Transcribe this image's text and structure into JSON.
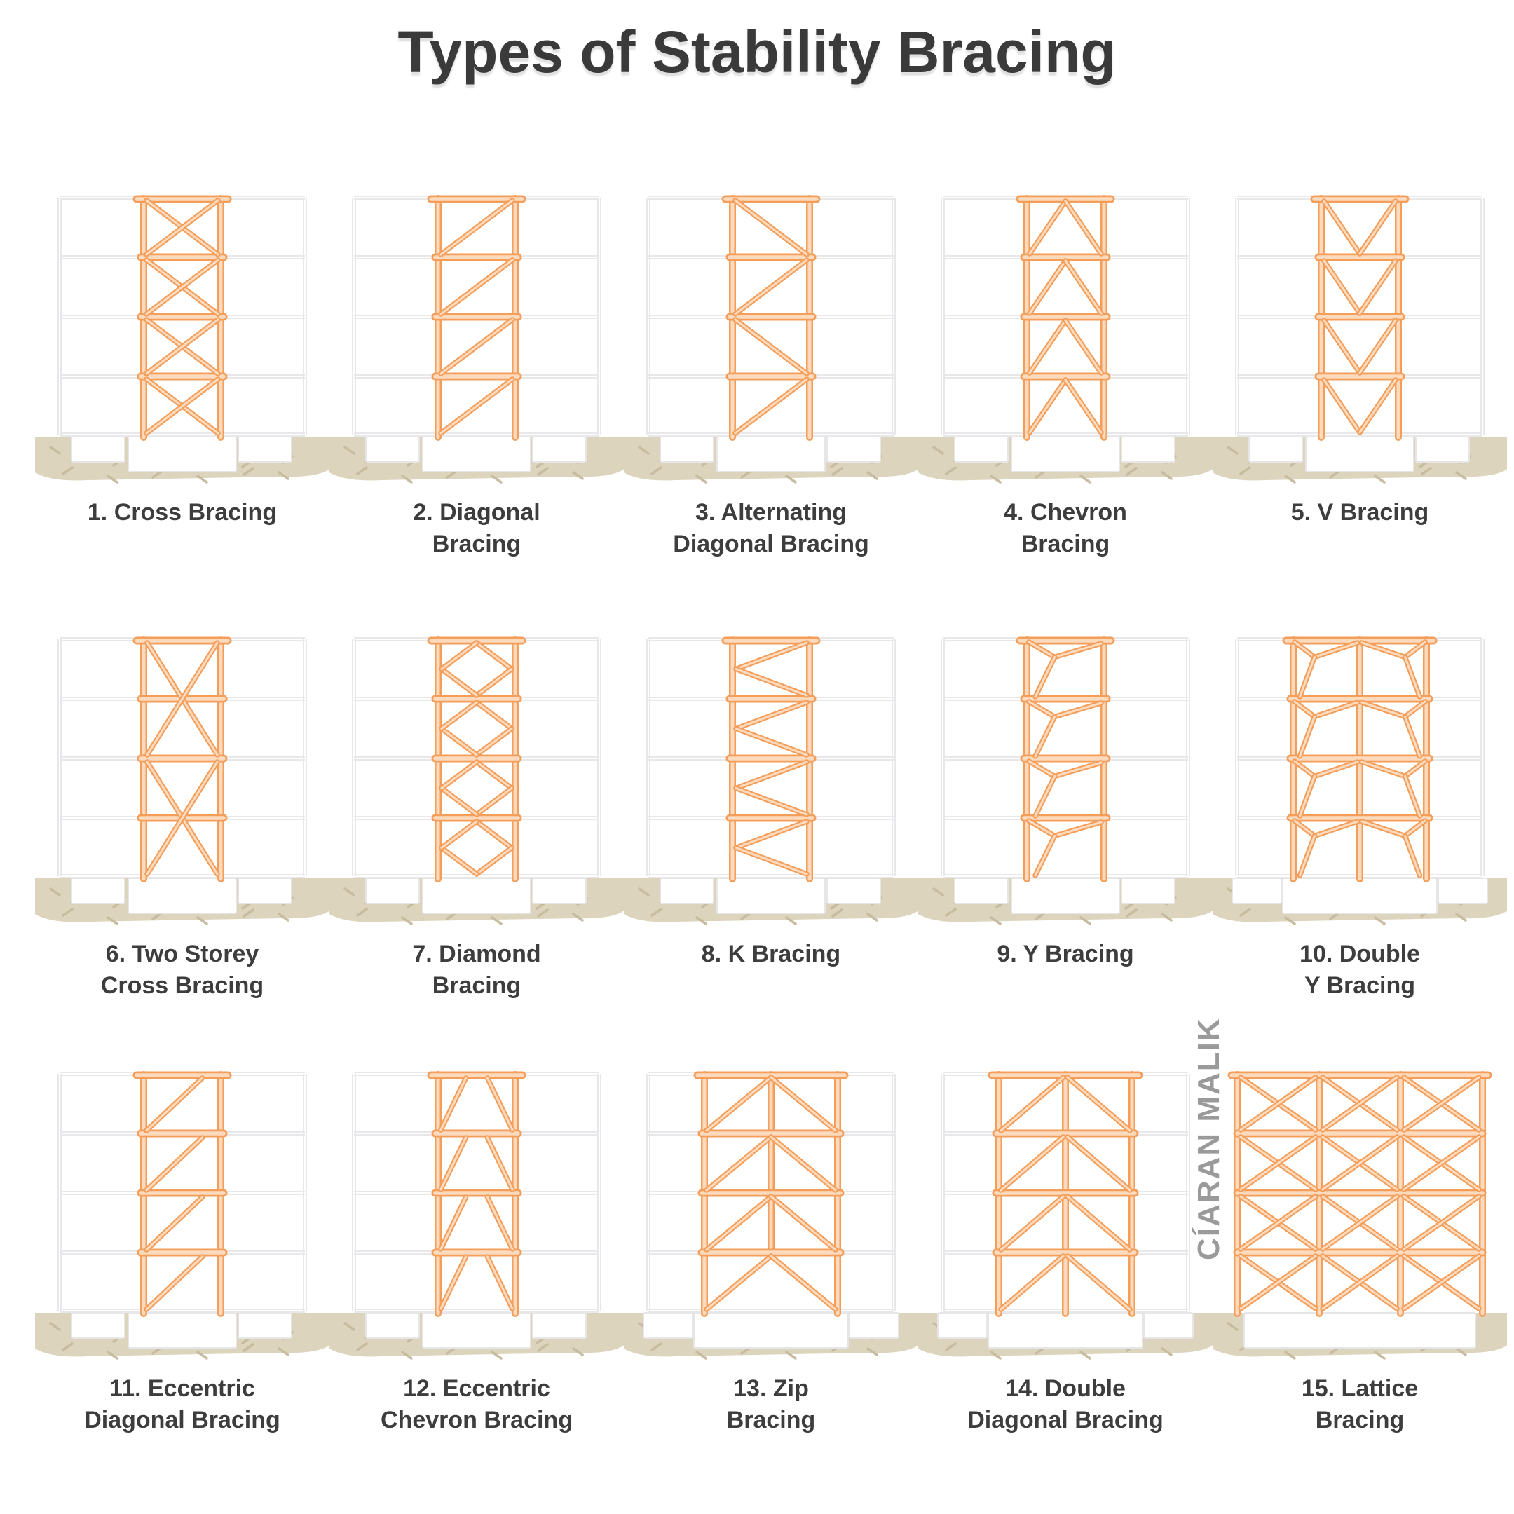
{
  "title": "Types of Stability Bracing",
  "watermark": "CÍARAN MALIK",
  "colors": {
    "accent_stroke": "#F49E5A",
    "accent_fill": "#FBDABE",
    "frame_gray": "#E8E8EB",
    "ground": "#DDD4BD",
    "ground_hatch": "#C8BCA0",
    "footing_fill": "#FFFFFF",
    "footing_stroke": "#E6E6E8",
    "label_text": "#3D3D3D",
    "title_text": "#3A3A3A",
    "watermark_text": "#9A9A9A"
  },
  "items": [
    {
      "id": 1,
      "label": "1. Cross Bracing",
      "pattern": "cross",
      "span": "single"
    },
    {
      "id": 2,
      "label": "2. Diagonal\nBracing",
      "pattern": "diagonal",
      "span": "single"
    },
    {
      "id": 3,
      "label": "3. Alternating\nDiagonal Bracing",
      "pattern": "alt_diagonal",
      "span": "single"
    },
    {
      "id": 4,
      "label": "4. Chevron\nBracing",
      "pattern": "chevron",
      "span": "single"
    },
    {
      "id": 5,
      "label": "5. V Bracing",
      "pattern": "v",
      "span": "single"
    },
    {
      "id": 6,
      "label": "6. Two Storey\nCross Bracing",
      "pattern": "two_storey_cross",
      "span": "single"
    },
    {
      "id": 7,
      "label": "7. Diamond\nBracing",
      "pattern": "diamond",
      "span": "single"
    },
    {
      "id": 8,
      "label": "8. K Bracing",
      "pattern": "k",
      "span": "single"
    },
    {
      "id": 9,
      "label": "9. Y Bracing",
      "pattern": "y",
      "span": "single"
    },
    {
      "id": 10,
      "label": "10. Double\nY Bracing",
      "pattern": "double_y",
      "span": "double"
    },
    {
      "id": 11,
      "label": "11. Eccentric\nDiagonal Bracing",
      "pattern": "ecc_diagonal",
      "span": "single"
    },
    {
      "id": 12,
      "label": "12. Eccentric\nChevron Bracing",
      "pattern": "ecc_chevron",
      "span": "single"
    },
    {
      "id": 13,
      "label": "13. Zip\nBracing",
      "pattern": "zip",
      "span": "double"
    },
    {
      "id": 14,
      "label": "14. Double\nDiagonal Bracing",
      "pattern": "double_diagonal",
      "span": "double"
    },
    {
      "id": 15,
      "label": "15. Lattice\nBracing",
      "pattern": "lattice",
      "span": "full"
    }
  ]
}
